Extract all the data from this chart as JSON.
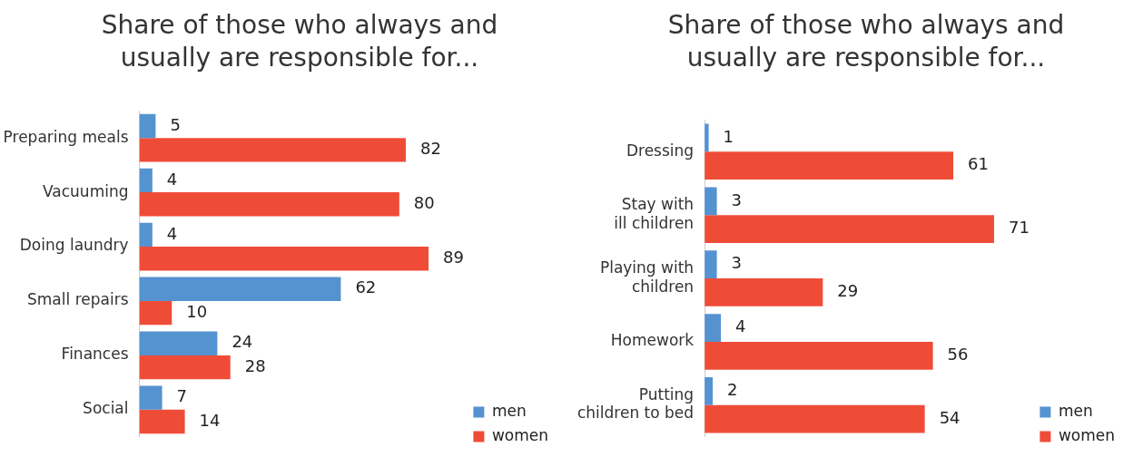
{
  "chart_data": [
    {
      "type": "bar",
      "orientation": "horizontal",
      "title": "Share of those who always and usually are responsible for...",
      "categories": [
        "Preparing meals",
        "Vacuuming",
        "Doing laundry",
        "Small repairs",
        "Finances",
        "Social"
      ],
      "series": [
        {
          "name": "men",
          "color": "#5592d0",
          "values": [
            5,
            4,
            4,
            62,
            24,
            7
          ]
        },
        {
          "name": "women",
          "color": "#ef4c38",
          "values": [
            82,
            80,
            89,
            10,
            28,
            14
          ]
        }
      ],
      "data_labels": true,
      "legend": "bottom right"
    },
    {
      "type": "bar",
      "orientation": "horizontal",
      "title": "Share of those who always and usually are responsible for...",
      "categories": [
        "Dressing",
        "Stay with ill children",
        "Playing with children",
        "Homework",
        "Putting children to bed"
      ],
      "series": [
        {
          "name": "men",
          "color": "#5592d0",
          "values": [
            1,
            3,
            3,
            4,
            2
          ]
        },
        {
          "name": "women",
          "color": "#ef4c38",
          "values": [
            61,
            71,
            29,
            56,
            54
          ]
        }
      ],
      "data_labels": true,
      "legend": "bottom right"
    }
  ]
}
